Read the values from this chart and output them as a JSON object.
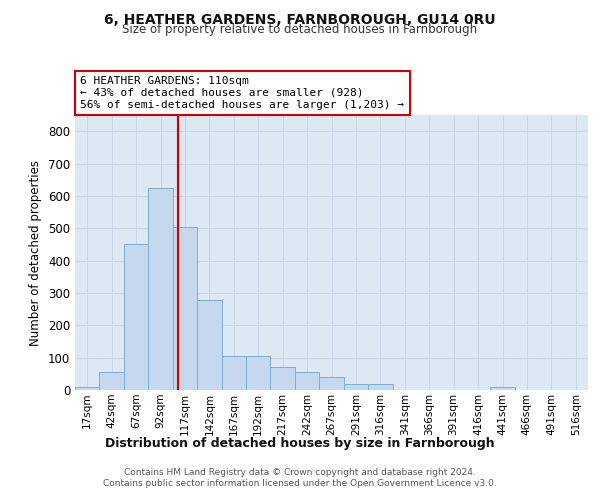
{
  "title1": "6, HEATHER GARDENS, FARNBOROUGH, GU14 0RU",
  "title2": "Size of property relative to detached houses in Farnborough",
  "xlabel": "Distribution of detached houses by size in Farnborough",
  "ylabel": "Number of detached properties",
  "bin_labels": [
    "17sqm",
    "42sqm",
    "67sqm",
    "92sqm",
    "117sqm",
    "142sqm",
    "167sqm",
    "192sqm",
    "217sqm",
    "242sqm",
    "267sqm",
    "291sqm",
    "316sqm",
    "341sqm",
    "366sqm",
    "391sqm",
    "416sqm",
    "441sqm",
    "466sqm",
    "491sqm",
    "516sqm"
  ],
  "bar_heights": [
    10,
    55,
    450,
    625,
    505,
    278,
    105,
    105,
    70,
    55,
    40,
    18,
    18,
    0,
    0,
    0,
    0,
    8,
    0,
    0,
    0
  ],
  "bar_color": "#c5d8ed",
  "bar_edge_color": "#7bafd4",
  "ylim": [
    0,
    850
  ],
  "yticks": [
    0,
    100,
    200,
    300,
    400,
    500,
    600,
    700,
    800
  ],
  "red_line_x": 3.72,
  "annotation_line1": "6 HEATHER GARDENS: 110sqm",
  "annotation_line2": "← 43% of detached houses are smaller (928)",
  "annotation_line3": "56% of semi-detached houses are larger (1,203) →",
  "annotation_box_color": "#ffffff",
  "annotation_box_edge": "#cc0000",
  "footer_text": "Contains HM Land Registry data © Crown copyright and database right 2024.\nContains public sector information licensed under the Open Government Licence v3.0.",
  "grid_color": "#c8d8e8",
  "bg_color": "#dce9f5"
}
